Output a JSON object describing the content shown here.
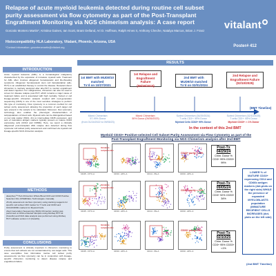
{
  "header": {
    "title": "Relapse of acute myeloid leukemia detected during routine cell subset purity assessment via flow cytometry as part of the Post-Transplant Engraftment Monitoring via NGS chimerism analysis: A case report",
    "authors": "Gonzalo Montero Martin*, Kristina Gaines, Ian Scott, Brant Oelland, Ari D. Hoffman, Ralph Hines II, Anthony Cheche, Natalya Marcus, Brian J. Franz",
    "affiliation": "Histocompatibility HLA Laboratory, Vitalant, Phoenix, Arizona, USA",
    "email": "*Contact information: gmonteromartin@vitalant.org",
    "logo": "vitalant",
    "poster_number": "Poster# 412"
  },
  "sections": {
    "introduction": {
      "heading": "INTRODUCTION",
      "text": "Acute myeloid leukemia (AML) is a hematological malignancy characterized by the expansion of immature myeloid cells. Treatment for AML often involves allogeneic hematopoietic and life-threating symptoms. Allogeneic hematopoietic stem cell transplantation (allo-HCT) is an established therapy to control the disease. Recipient-donor chimerism is routinely analyzed after allo-HCT to monitor engraftment and detect rejection. For malignancies, chimerism can also be used to screen for disease relapse post-HCT, which remains a major cause of treatment failure and is associated with high mortality. Sorted or cell lineage-specific chimerism analysis coupled with next-generation sequencing (NGS) is one of the most sensitive strategies to perform this type of monitoring. Flow cytometry is a common method for cell subset purity assessment allowing the proportion of each target cell type present in the sample to be calculated. Moreover, flow cytometry technology also enables the phenotypic characterization of subpopulations of blood cells. Myeloid cells can be distinguished based on low side scatter (SSC), dim to intermediate CD45 expression, and sets of maturation antigen markers typically present on mature CD33 expressing cells (CD14 and CD66b). Here, we report a clinically diagnosed post-transplant AML relapse also detected during flow cytometer cell subset purity assessment and confirmed via myeloid cell lineage-specific NGS chimerism analysis."
    },
    "methods": {
      "heading": "METHODS",
      "items": [
        "EasySep™ HLA Chimerism Whole Blood CD3 and CD33 Positive Selection Kits (STEMCELL Technologies, Canada).",
        "Purity assessment via flow cytometry using staining reagents for specific cell subset CD3 marker for T Cells and CD33 and CD14/CD66b markers for Myeloid Cells.",
        "Next Generation Sequencing (NGS) Chimerism testing was performed on DNA extracted samples using AlloSeq HCT kit (CareDx) and NGS data analysis was performed using AlloSeq HCT software version 1.3 (CareDx)."
      ]
    },
    "conclusions": {
      "heading": "CONCLUSIONS",
      "text": "Purity assessment is critically important in chimerism monitoring to ensure that cell subsets are not contaminated by non-target cells. This case exemplifies how informative routine cell subset purity assessments via flow cytometry can be in conjunction with lineage-specific chimerism monitoring to detect disease relapse and engraftment failure."
    }
  },
  "results": {
    "heading": "RESULTS",
    "bmt_timeline_label": "(BMT Timeline)",
    "timeline": [
      {
        "title": "1st BMT with MUD8/10 matched",
        "sub": "Tx’d on 10/27/2021"
      },
      {
        "title": "1st Relapse and Engraftment Failure",
        "sub": "(09/26/2023)"
      },
      {
        "title": "2nd BMT with MUD9/10 matched",
        "sub": "Tx’d on 02/01/2024"
      },
      {
        "title": "2nd Relapse and Engraftment Failure",
        "sub": "(02/10/2025)"
      }
    ],
    "chimerism_notes": [
      {
        "line1": "Mixed Chimerism:",
        "line2": "57-99% Donor",
        "line3": "(from 01/24/2022 to 09/05/23)"
      },
      {
        "line1": "Mixed Chimerism:",
        "line2": "50% Donor (09/26/2023)"
      },
      {
        "line1": "Sorted Chimerism (04/29/2024)",
        "line2": "T cells CD3+: 99% Donor",
        "highlight": "Myeloid Cells CD33+ 99% Donor"
      },
      {
        "line1": "Sorted Chimerism (02/10/2025)",
        "line2": "T cells CD3+: 95% Donor",
        "highlight": "Myeloid CD33+: < 1% Donor"
      }
    ],
    "context": "In the context of this 2nd BMT",
    "main_heading": "Myeloid CD33+ Positive-selected Cell Subset Purity Assessment via Flow Cytometry as part of the Post-Transplant Engraftment Monitoring via NGS Chimerism analysis after 2nd BMT",
    "axis_labels": {
      "a": "CD45 - FITC-A",
      "b": "CD14 - PE-A",
      "c": "CD33 - APC-A"
    },
    "annotations": {
      "recipient": "Immature recipient cells"
    },
    "posttx": [
      {
        "title": "Post-Tx 04/29/24",
        "chim": "Chim. Donor % CD3+ 99% CD33+ 99%",
        "purity": "CD33+ purity = 83%"
      },
      {
        "title": "Post-Tx 09/05/24",
        "chim": "Chim. Donor % CD3+ 92% CD33+ 34%",
        "purity": "CD33+ purity = 12%"
      },
      {
        "title": "Post-Tx 02/10/25",
        "chim": "Chim. Donor % CD3+ 95% CD33+ <1%",
        "purity": "CD33+ purity = 2%"
      }
    ],
    "right_note": "LOWER % of MATURE CD33+ expressing CD14 and CD66b antigen markers (dot-plots on the right side) WHILE the presence of expanded MYELOBLASTS population (IMMATURE RECIPIENT CELLS INCREASES (dot-plots on the left side)",
    "second_bmt_timeline": "(2nd BMT Timeline)"
  },
  "colors": {
    "header_blue": "#6a8fc2",
    "accent_red": "#c8272c",
    "accent_blue": "#1f4fa3"
  }
}
